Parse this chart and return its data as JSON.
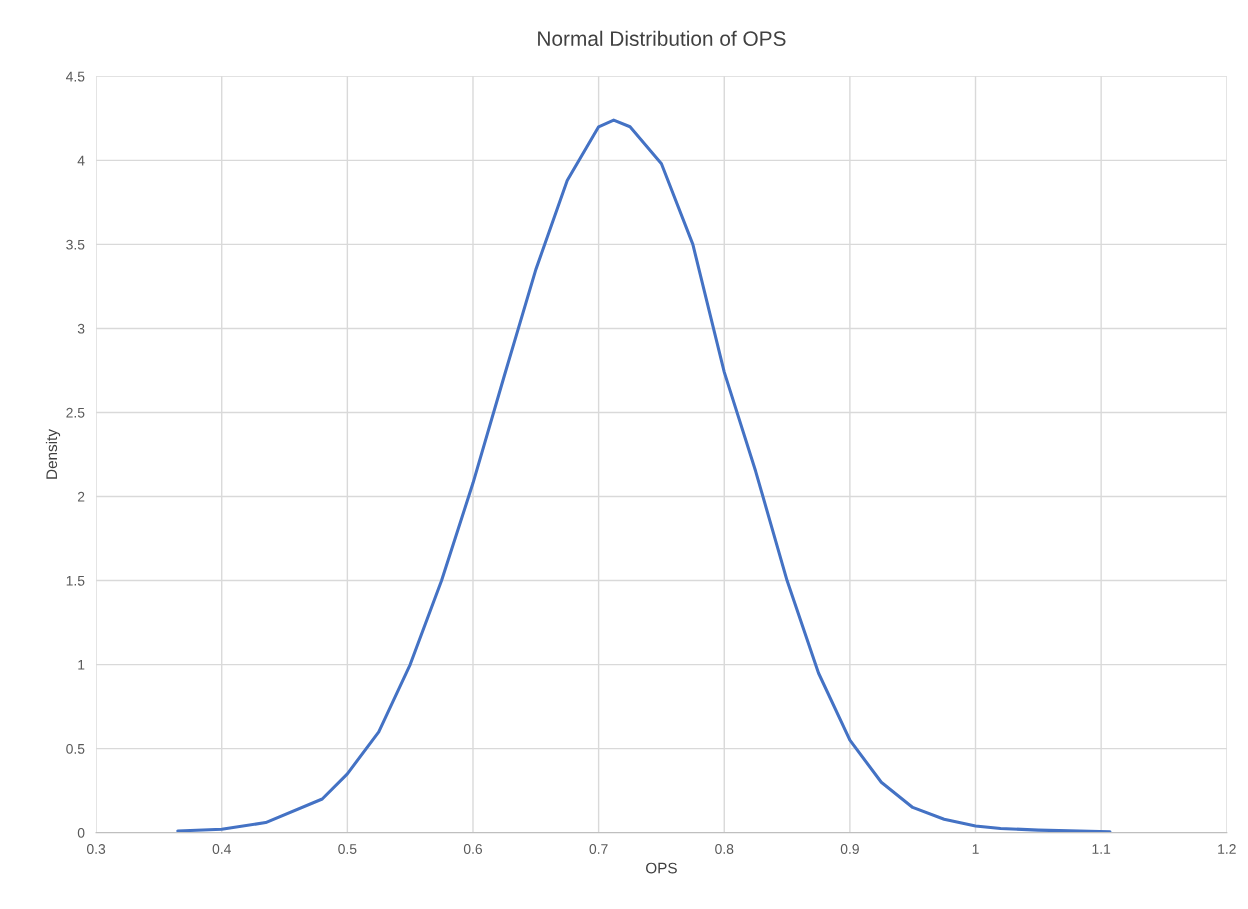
{
  "chart_data": {
    "type": "line",
    "title": "Normal Distribution of OPS",
    "xlabel": "OPS",
    "ylabel": "Density",
    "x": [
      0.365,
      0.4,
      0.435,
      0.48,
      0.5,
      0.525,
      0.55,
      0.575,
      0.6,
      0.625,
      0.65,
      0.675,
      0.7,
      0.712,
      0.725,
      0.75,
      0.775,
      0.8,
      0.825,
      0.85,
      0.875,
      0.9,
      0.925,
      0.95,
      0.975,
      1.0,
      1.02,
      1.05,
      1.107
    ],
    "series": [
      {
        "color": "#4472c4",
        "values": [
          0.01,
          0.02,
          0.06,
          0.2,
          0.35,
          0.6,
          1.0,
          1.5,
          2.08,
          2.72,
          3.35,
          3.88,
          4.2,
          4.24,
          4.2,
          3.98,
          3.5,
          2.74,
          2.15,
          1.5,
          0.95,
          0.55,
          0.3,
          0.15,
          0.08,
          0.04,
          0.025,
          0.015,
          0.005
        ]
      }
    ],
    "xlim": [
      0.3,
      1.2
    ],
    "xticks": [
      0.3,
      0.4,
      0.5,
      0.6,
      0.7,
      0.8,
      0.9,
      1,
      1.1,
      1.2
    ],
    "ylim": [
      0,
      4.5
    ],
    "yticks": [
      0,
      0.5,
      1,
      1.5,
      2,
      2.5,
      3,
      3.5,
      4,
      4.5
    ],
    "grid": true,
    "marker": "none",
    "line_style": "solid"
  }
}
